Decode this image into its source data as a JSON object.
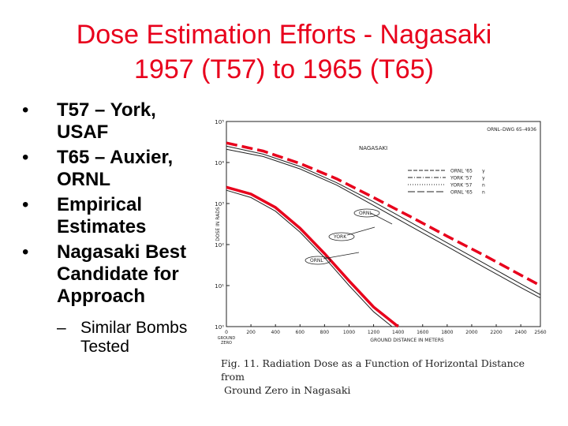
{
  "slide": {
    "title_line1": "Dose Estimation Efforts - Nagasaki",
    "title_line2": "1957 (T57) to 1965 (T65)",
    "bullets": [
      "T57 – York, USAF",
      "T65 – Auxier, ORNL",
      "Empirical Estimates",
      "Nagasaki Best Candidate for Approach"
    ],
    "sub_bullets": [
      "Similar Bombs Tested"
    ],
    "colors": {
      "title": "#e8001c",
      "highlight": "#e8001c",
      "ink": "#222222"
    }
  },
  "figure": {
    "caption_line1": "Fig. 11.  Radiation Dose as a Function of Horizontal Distance from",
    "caption_line2": "Ground Zero in Nagasaki",
    "ornl_code": "ORNL–DWG  65–4936"
  },
  "chart_data": {
    "type": "line",
    "title": "NAGASAKI",
    "xlabel": "GROUND DISTANCE IN METERS",
    "ylabel": "DOSE IN RADS",
    "xlim": [
      0,
      2560
    ],
    "ylim_log10": [
      0,
      5
    ],
    "x_ticks": [
      "0",
      "200",
      "400",
      "600",
      "800",
      "1000",
      "1200",
      "1400",
      "1600",
      "1800",
      "2000",
      "2200",
      "2400",
      "2560"
    ],
    "x_tick_values": [
      0,
      200,
      400,
      600,
      800,
      1000,
      1200,
      1400,
      1600,
      1800,
      2000,
      2200,
      2400,
      2560
    ],
    "x_origin_label": [
      "GROUND",
      "ZERO"
    ],
    "y_ticks": [
      "10⁵",
      "10⁴",
      "10³",
      "10²",
      "10¹",
      "10⁰"
    ],
    "y_tick_exponents": [
      5,
      4,
      3,
      2,
      1,
      0
    ],
    "legend": [
      {
        "name": "ORNL '65",
        "unit": "γ",
        "style": "dashed"
      },
      {
        "name": "YORK '57",
        "unit": "γ",
        "style": "dashdot"
      },
      {
        "name": "YORK '57",
        "unit": "n",
        "style": "dotted"
      },
      {
        "name": "ORNL '65",
        "unit": "n",
        "style": "longdash"
      }
    ],
    "annotations": [
      "ORNL",
      "YORK",
      "ORNL"
    ],
    "series": [
      {
        "style": "red-dashed-highlight",
        "points": [
          [
            0,
            30000
          ],
          [
            300,
            19000
          ],
          [
            600,
            9500
          ],
          [
            900,
            4000
          ],
          [
            1200,
            1400
          ],
          [
            1500,
            480
          ],
          [
            1800,
            160
          ],
          [
            2100,
            55
          ],
          [
            2400,
            18
          ],
          [
            2560,
            10
          ]
        ]
      },
      {
        "style": "solid",
        "points": [
          [
            0,
            25000
          ],
          [
            300,
            16000
          ],
          [
            600,
            8000
          ],
          [
            900,
            3200
          ],
          [
            1200,
            1100
          ],
          [
            1500,
            350
          ],
          [
            1800,
            110
          ],
          [
            2100,
            35
          ],
          [
            2400,
            11
          ],
          [
            2560,
            6
          ]
        ]
      },
      {
        "style": "solid",
        "points": [
          [
            0,
            21000
          ],
          [
            300,
            14000
          ],
          [
            600,
            7000
          ],
          [
            900,
            2800
          ],
          [
            1200,
            900
          ],
          [
            1500,
            280
          ],
          [
            1800,
            90
          ],
          [
            2100,
            28
          ],
          [
            2400,
            9
          ],
          [
            2560,
            5
          ]
        ]
      },
      {
        "style": "red-solid-highlight",
        "points": [
          [
            0,
            2500
          ],
          [
            200,
            1700
          ],
          [
            400,
            800
          ],
          [
            600,
            250
          ],
          [
            800,
            60
          ],
          [
            1000,
            13
          ],
          [
            1200,
            3
          ],
          [
            1400,
            1
          ]
        ]
      },
      {
        "style": "solid",
        "points": [
          [
            0,
            2100
          ],
          [
            200,
            1400
          ],
          [
            400,
            650
          ],
          [
            600,
            200
          ],
          [
            800,
            48
          ],
          [
            1000,
            10
          ],
          [
            1200,
            2.3
          ],
          [
            1350,
            1
          ]
        ]
      }
    ]
  }
}
